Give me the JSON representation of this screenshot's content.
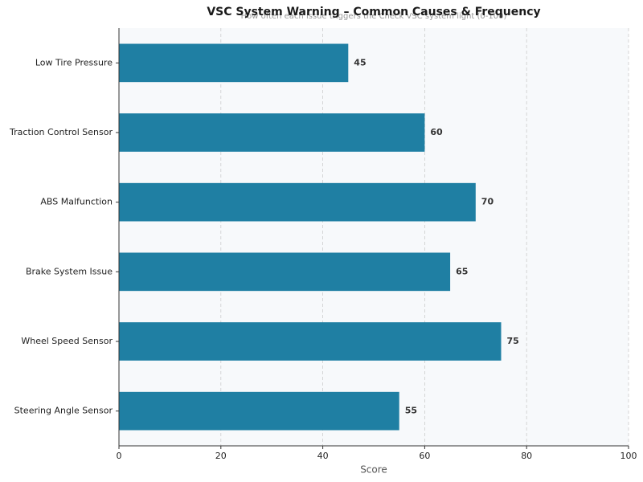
{
  "chart_data": {
    "type": "hbar",
    "title": "VSC System Warning – Common Causes & Frequency",
    "subtitle": "How often each issue triggers the Check VSC system light (0-100)",
    "x_label": "Score",
    "categories": [
      "Low Tire Pressure",
      "Traction Control Sensor",
      "ABS Malfunction",
      "Brake System Issue",
      "Wheel Speed Sensor",
      "Steering Angle Sensor"
    ],
    "values": [
      45,
      60,
      70,
      65,
      75,
      55
    ],
    "color": "#1f7fa3",
    "xlim": [
      0,
      100
    ],
    "xticks": [
      0,
      20,
      40,
      60,
      80,
      100
    ],
    "grid": true
  }
}
